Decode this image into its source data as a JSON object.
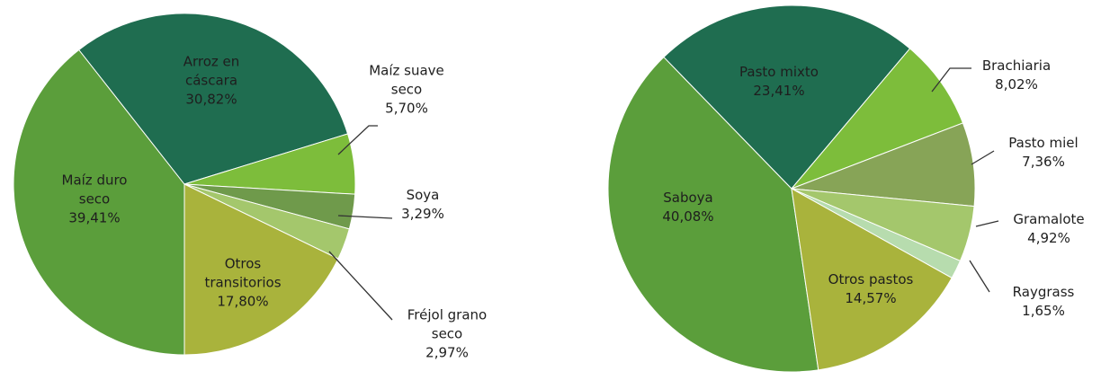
{
  "chart_data": [
    {
      "type": "pie",
      "categories": [
        "Maíz duro seco",
        "Arroz en cáscara",
        "Maíz suave seco",
        "Soya",
        "Fréjol grano seco",
        "Otros transitorios"
      ],
      "values": [
        39.41,
        30.82,
        5.7,
        3.29,
        2.97,
        17.8
      ],
      "value_labels": [
        "39,41%",
        "30,82%",
        "5,70%",
        "3,29%",
        "2,97%",
        "17,80%"
      ],
      "colors": [
        "#5b9e3b",
        "#1f6d50",
        "#7dbd3b",
        "#6f9a4b",
        "#a4c76c",
        "#a9b33c"
      ]
    },
    {
      "type": "pie",
      "categories": [
        "Saboya",
        "Pasto mixto",
        "Brachiaria",
        "Pasto miel",
        "Gramalote",
        "Raygrass",
        "Otros pastos"
      ],
      "values": [
        40.08,
        23.41,
        8.02,
        7.36,
        4.92,
        1.65,
        14.57
      ],
      "value_labels": [
        "40,08%",
        "23,41%",
        "8,02%",
        "7,36%",
        "4,92%",
        "1,65%",
        "14,57%"
      ],
      "colors": [
        "#5b9e3b",
        "#1f6d50",
        "#7dbd3b",
        "#87a457",
        "#a4c76c",
        "#b7dcae",
        "#a9b33c"
      ]
    }
  ]
}
